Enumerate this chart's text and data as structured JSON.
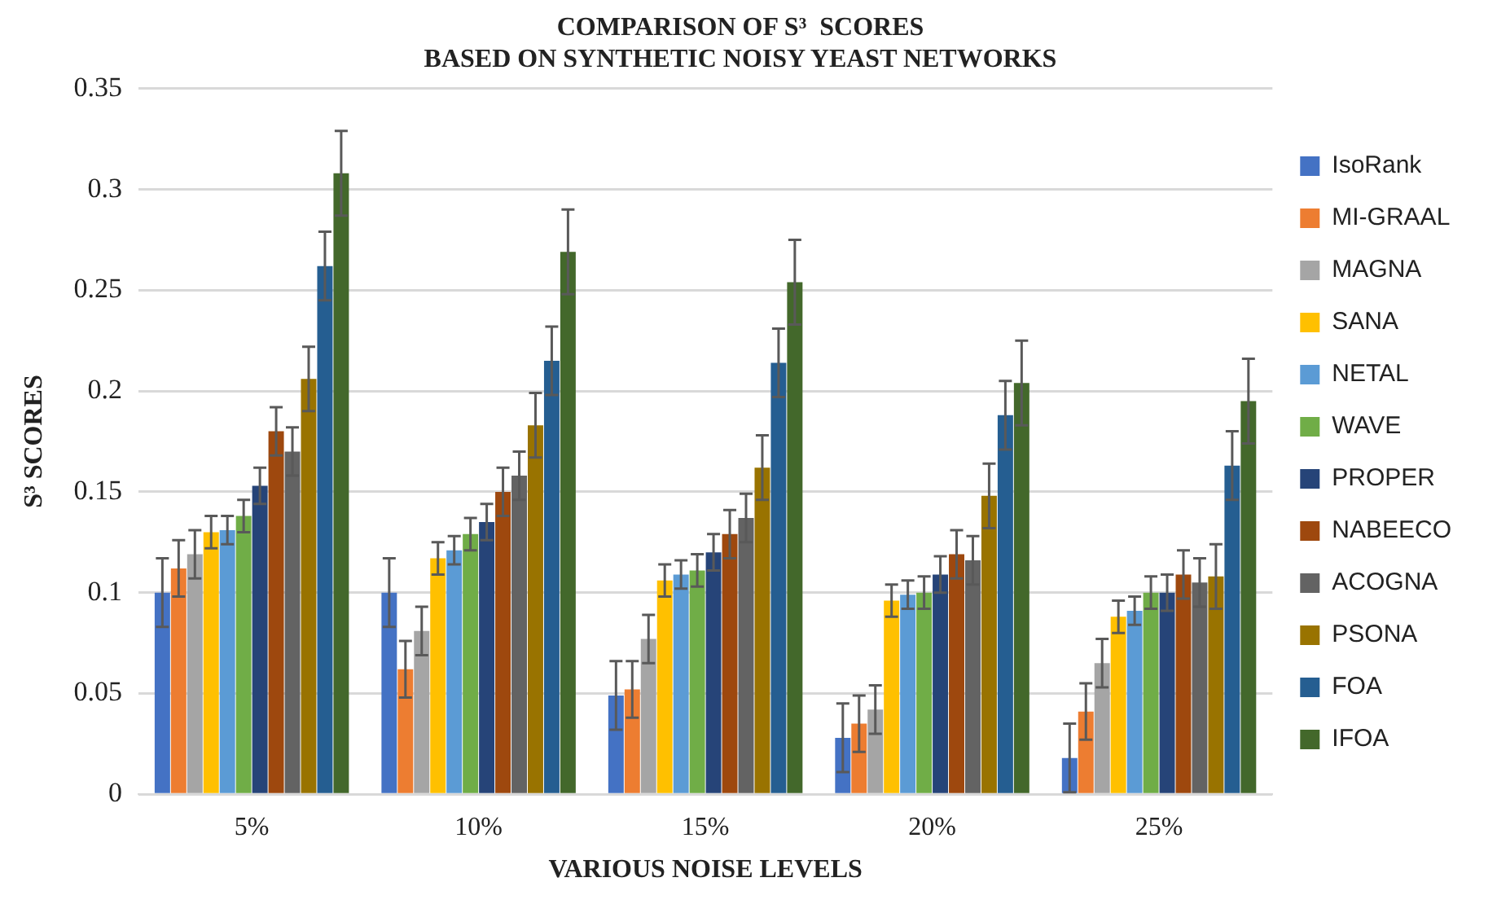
{
  "chart_data": {
    "type": "bar",
    "title": "COMPARISON OF S³  SCORES\nBASED ON SYNTHETIC NOISY YEAST NETWORKS",
    "xlabel": "VARIOUS NOISE LEVELS",
    "ylabel": "S³ SCORES",
    "categories": [
      "5%",
      "10%",
      "15%",
      "20%",
      "25%"
    ],
    "series": [
      {
        "name": "IsoRank",
        "color": "#4472c4",
        "values": [
          0.1,
          0.1,
          0.049,
          0.028,
          0.018
        ],
        "errors": [
          0.017,
          0.017,
          0.017,
          0.017,
          0.017
        ]
      },
      {
        "name": "MI-GRAAL",
        "color": "#ed7d31",
        "values": [
          0.112,
          0.062,
          0.052,
          0.035,
          0.041
        ],
        "errors": [
          0.014,
          0.014,
          0.014,
          0.014,
          0.014
        ]
      },
      {
        "name": "MAGNA",
        "color": "#a5a5a5",
        "values": [
          0.119,
          0.081,
          0.077,
          0.042,
          0.065
        ],
        "errors": [
          0.012,
          0.012,
          0.012,
          0.012,
          0.012
        ]
      },
      {
        "name": "SANA",
        "color": "#ffc000",
        "values": [
          0.13,
          0.117,
          0.106,
          0.096,
          0.088
        ],
        "errors": [
          0.008,
          0.008,
          0.008,
          0.008,
          0.008
        ]
      },
      {
        "name": "NETAL",
        "color": "#5b9bd5",
        "values": [
          0.131,
          0.121,
          0.109,
          0.099,
          0.091
        ],
        "errors": [
          0.007,
          0.007,
          0.007,
          0.007,
          0.007
        ]
      },
      {
        "name": "WAVE",
        "color": "#70ad47",
        "values": [
          0.138,
          0.129,
          0.111,
          0.1,
          0.1
        ],
        "errors": [
          0.008,
          0.008,
          0.008,
          0.008,
          0.008
        ]
      },
      {
        "name": "PROPER",
        "color": "#264478",
        "values": [
          0.153,
          0.135,
          0.12,
          0.109,
          0.1
        ],
        "errors": [
          0.009,
          0.009,
          0.009,
          0.009,
          0.009
        ]
      },
      {
        "name": "NABEECO",
        "color": "#9e480e",
        "values": [
          0.18,
          0.15,
          0.129,
          0.119,
          0.109
        ],
        "errors": [
          0.012,
          0.012,
          0.012,
          0.012,
          0.012
        ]
      },
      {
        "name": "ACOGNA",
        "color": "#636363",
        "values": [
          0.17,
          0.158,
          0.137,
          0.116,
          0.105
        ],
        "errors": [
          0.012,
          0.012,
          0.012,
          0.012,
          0.012
        ]
      },
      {
        "name": "PSONA",
        "color": "#997300",
        "values": [
          0.206,
          0.183,
          0.162,
          0.148,
          0.108
        ],
        "errors": [
          0.016,
          0.016,
          0.016,
          0.016,
          0.016
        ]
      },
      {
        "name": "FOA",
        "color": "#255e91",
        "values": [
          0.262,
          0.215,
          0.214,
          0.188,
          0.163
        ],
        "errors": [
          0.017,
          0.017,
          0.017,
          0.017,
          0.017
        ]
      },
      {
        "name": "IFOA",
        "color": "#43682b",
        "values": [
          0.308,
          0.269,
          0.254,
          0.204,
          0.195
        ],
        "errors": [
          0.021,
          0.021,
          0.021,
          0.021,
          0.021
        ]
      }
    ],
    "ylim": [
      0,
      0.35
    ],
    "yticks": [
      0,
      0.05,
      0.1,
      0.15,
      0.2,
      0.25,
      0.3,
      0.35
    ],
    "grid": "y",
    "legend": "right"
  }
}
